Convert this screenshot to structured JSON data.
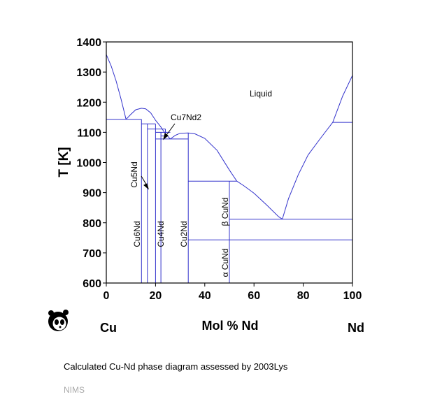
{
  "chart_data": {
    "type": "line",
    "title": "",
    "xlabel": "Mol % Nd",
    "ylabel": "T [K]",
    "xlim": [
      0,
      100
    ],
    "ylim": [
      600,
      1400
    ],
    "x_ticks": [
      "0",
      "20",
      "40",
      "60",
      "80",
      "100"
    ],
    "y_ticks": [
      "600",
      "700",
      "800",
      "900",
      "1000",
      "1100",
      "1200",
      "1300",
      "1400"
    ],
    "left_element": "Cu",
    "right_element": "Nd",
    "grid": false,
    "line_color": "#3333cc",
    "region_labels": {
      "liquid": "Liquid",
      "cu7nd2": "Cu7Nd2",
      "cu5nd": "Cu5Nd",
      "cu6nd": "Cu6Nd",
      "cu4nd": "Cu4Nd",
      "cu2nd": "Cu2Nd",
      "beta_cund": "β CuNd",
      "alpha_cund": "α CuNd"
    },
    "series": [
      {
        "key": "liquidus_cu",
        "points": [
          [
            0,
            1358
          ],
          [
            2,
            1320
          ],
          [
            4,
            1270
          ],
          [
            6,
            1210
          ],
          [
            8,
            1143
          ]
        ]
      },
      {
        "key": "liquidus_cu6nd",
        "points": [
          [
            8,
            1143
          ],
          [
            10,
            1160
          ],
          [
            12,
            1175
          ],
          [
            14.3,
            1180
          ],
          [
            16,
            1178
          ],
          [
            18,
            1165
          ],
          [
            20,
            1140
          ],
          [
            22,
            1120
          ],
          [
            24,
            1095
          ],
          [
            26,
            1078
          ]
        ]
      },
      {
        "key": "liquidus_cu2nd",
        "points": [
          [
            26,
            1078
          ],
          [
            28,
            1090
          ],
          [
            30,
            1097
          ],
          [
            33.3,
            1098
          ],
          [
            36,
            1095
          ],
          [
            40,
            1080
          ],
          [
            45,
            1040
          ],
          [
            50,
            975
          ],
          [
            53,
            938
          ]
        ]
      },
      {
        "key": "liquidus_cund",
        "points": [
          [
            53,
            938
          ],
          [
            56,
            922
          ],
          [
            60,
            898
          ],
          [
            65,
            860
          ],
          [
            70,
            820
          ],
          [
            71.5,
            812
          ]
        ]
      },
      {
        "key": "liquidus_nd",
        "points": [
          [
            71.5,
            812
          ],
          [
            74,
            880
          ],
          [
            78,
            960
          ],
          [
            82,
            1025
          ],
          [
            87,
            1080
          ],
          [
            92,
            1133
          ]
        ]
      },
      {
        "key": "liquidus_nd_high",
        "points": [
          [
            92,
            1133
          ],
          [
            96,
            1220
          ],
          [
            100,
            1289
          ]
        ]
      },
      {
        "key": "eutectic_cu",
        "points": [
          [
            0,
            1143
          ],
          [
            14.3,
            1143
          ]
        ]
      },
      {
        "key": "peritectic_cu5nd",
        "points": [
          [
            14.3,
            1128
          ],
          [
            20,
            1128
          ]
        ]
      },
      {
        "key": "peritectic_cu4nd",
        "points": [
          [
            16.7,
            1111
          ],
          [
            24,
            1111
          ]
        ]
      },
      {
        "key": "peritectic_cu7nd2",
        "points": [
          [
            20,
            1100
          ],
          [
            26,
            1100
          ]
        ]
      },
      {
        "key": "eutectic_cu7nd2",
        "points": [
          [
            20,
            1078
          ],
          [
            33.3,
            1078
          ]
        ]
      },
      {
        "key": "eutectic_cu2nd",
        "points": [
          [
            22.2,
            1088
          ],
          [
            25,
            1088
          ]
        ]
      },
      {
        "key": "peritectic_cund",
        "points": [
          [
            33.3,
            938
          ],
          [
            53,
            938
          ]
        ]
      },
      {
        "key": "eutectic_nd",
        "points": [
          [
            50,
            812
          ],
          [
            100,
            812
          ]
        ]
      },
      {
        "key": "beta_alpha_nd",
        "points": [
          [
            92,
            1133
          ],
          [
            100,
            1133
          ]
        ]
      },
      {
        "key": "alpha_beta_cund",
        "points": [
          [
            33.3,
            743
          ],
          [
            100,
            743
          ]
        ]
      },
      {
        "key": "cu6nd_line",
        "points": [
          [
            14.3,
            600
          ],
          [
            14.3,
            1143
          ]
        ]
      },
      {
        "key": "cu5nd_line",
        "points": [
          [
            16.7,
            600
          ],
          [
            16.7,
            1128
          ]
        ]
      },
      {
        "key": "cu4nd_line",
        "points": [
          [
            20,
            600
          ],
          [
            20,
            1128
          ]
        ]
      },
      {
        "key": "cu7nd2_line",
        "points": [
          [
            22.2,
            600
          ],
          [
            22.2,
            1100
          ]
        ]
      },
      {
        "key": "cu7nd2_short",
        "points": [
          [
            24,
            1088
          ],
          [
            24,
            1111
          ]
        ]
      },
      {
        "key": "cu2nd_line",
        "points": [
          [
            33.3,
            600
          ],
          [
            33.3,
            1098
          ]
        ]
      },
      {
        "key": "cund_line",
        "points": [
          [
            50,
            600
          ],
          [
            50,
            938
          ]
        ]
      }
    ]
  },
  "caption": "Calculated Cu-Nd phase diagram assessed by 2003Lys",
  "footer": "NIMS"
}
